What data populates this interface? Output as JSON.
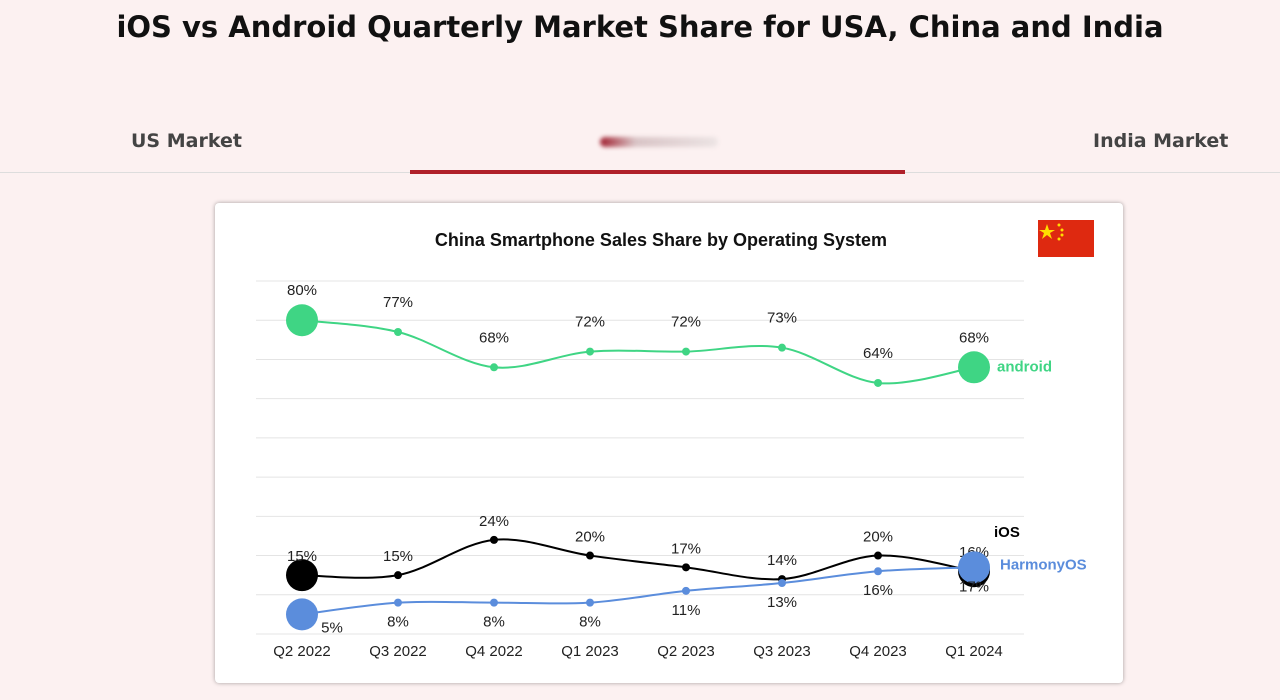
{
  "header": {
    "title": "iOS vs Android Quarterly Market Share for USA, China and India"
  },
  "tabs": [
    "US Market",
    "India Market"
  ],
  "chart_data": {
    "type": "line",
    "title": "China Smartphone Sales Share by Operating System",
    "categories": [
      "Q2 2022",
      "Q3 2022",
      "Q4 2022",
      "Q1 2023",
      "Q2 2023",
      "Q3 2023",
      "Q4 2023",
      "Q1 2024"
    ],
    "series": [
      {
        "name": "android",
        "color": "#3fd584",
        "values": [
          80,
          77,
          68,
          72,
          72,
          73,
          64,
          68
        ],
        "value_labels": [
          "80%",
          "77%",
          "68%",
          "72%",
          "72%",
          "73%",
          "64%",
          "68%"
        ]
      },
      {
        "name": "iOS",
        "color": "#000000",
        "values": [
          15,
          15,
          24,
          20,
          17,
          14,
          20,
          16
        ],
        "value_labels": [
          "15%",
          "15%",
          "24%",
          "20%",
          "17%",
          "14%",
          "20%",
          "16%"
        ]
      },
      {
        "name": "HarmonyOS",
        "color": "#5b8ddc",
        "values": [
          5,
          8,
          8,
          8,
          11,
          13,
          16,
          17
        ],
        "value_labels": [
          "5%",
          "8%",
          "8%",
          "8%",
          "11%",
          "13%",
          "16%",
          "17%"
        ]
      }
    ],
    "ylim": [
      0,
      90
    ],
    "yticks": [
      0,
      10,
      20,
      30,
      40,
      50,
      60,
      70,
      80,
      90
    ],
    "grid": true
  }
}
